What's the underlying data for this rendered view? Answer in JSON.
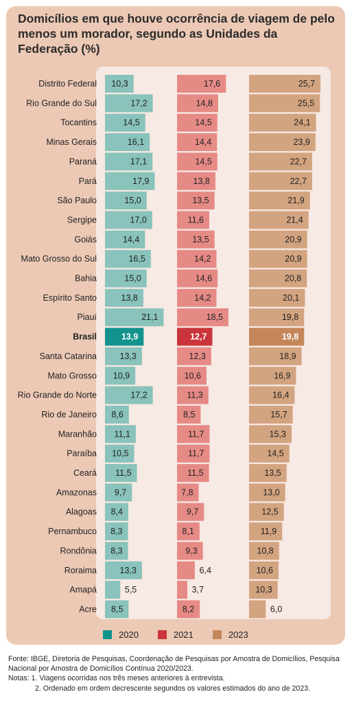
{
  "title": "Domicílios em que houve ocorrência de viagem de pelo menos um morador, segundo as Unidades da Federação (%)",
  "colors": {
    "panel": "#ecc9b5",
    "plot_bg": "#f7e9e3",
    "s2020": "#89c3bb",
    "s2020_highlight": "#12938d",
    "s2021": "#e68a86",
    "s2021_highlight": "#c9353a",
    "s2023": "#d3a480",
    "s2023_highlight": "#c5875a"
  },
  "legend": [
    {
      "label": "2020",
      "color": "#12938d"
    },
    {
      "label": "2021",
      "color": "#c9353a"
    },
    {
      "label": "2023",
      "color": "#c5875a"
    }
  ],
  "chart_data": {
    "type": "bar",
    "orientation": "horizontal",
    "highlight": "Brasil",
    "categories": [
      "Distrito Federal",
      "Rio Grande do Sul",
      "Tocantins",
      "Minas Gerais",
      "Paraná",
      "Pará",
      "São Paulo",
      "Sergipe",
      "Goiás",
      "Mato Grosso do Sul",
      "Bahia",
      "Espírito Santo",
      "Piauí",
      "Brasil",
      "Santa Catarina",
      "Mato Grosso",
      "Rio Grande do Norte",
      "Rio de Janeiro",
      "Maranhão",
      "Paraíba",
      "Ceará",
      "Amazonas",
      "Alagoas",
      "Pernambuco",
      "Rondônia",
      "Roraima",
      "Amapá",
      "Acre"
    ],
    "series": [
      {
        "name": "2020",
        "values": [
          10.3,
          17.2,
          14.5,
          16.1,
          17.1,
          17.9,
          15.0,
          17.0,
          14.4,
          16.5,
          15.0,
          13.8,
          21.1,
          13.9,
          13.3,
          10.9,
          17.2,
          8.6,
          11.1,
          10.5,
          11.5,
          9.7,
          8.4,
          8.3,
          8.3,
          13.3,
          5.5,
          8.5
        ],
        "labels": [
          "10,3",
          "17,2",
          "14,5",
          "16,1",
          "17,1",
          "17,9",
          "15,0",
          "17,0",
          "14,4",
          "16,5",
          "15,0",
          "13,8",
          "21,1",
          "13,9",
          "13,3",
          "10,9",
          "17,2",
          "8,6",
          "11,1",
          "10,5",
          "11,5",
          "9,7",
          "8,4",
          "8,3",
          "8,3",
          "13,3",
          "5,5",
          "8,5"
        ]
      },
      {
        "name": "2021",
        "values": [
          17.6,
          14.8,
          14.5,
          14.4,
          14.5,
          13.8,
          13.5,
          11.6,
          13.5,
          14.2,
          14.6,
          14.2,
          18.5,
          12.7,
          12.3,
          10.6,
          11.3,
          8.5,
          11.7,
          11.7,
          11.5,
          7.8,
          9.7,
          8.1,
          9.3,
          6.4,
          3.7,
          8.2
        ],
        "labels": [
          "17,6",
          "14,8",
          "14,5",
          "14,4",
          "14,5",
          "13,8",
          "13,5",
          "11,6",
          "13,5",
          "14,2",
          "14,6",
          "14,2",
          "18,5",
          "12,7",
          "12,3",
          "10,6",
          "11,3",
          "8,5",
          "11,7",
          "11,7",
          "11,5",
          "7,8",
          "9,7",
          "8,1",
          "9,3",
          "6,4",
          "3,7",
          "8,2"
        ]
      },
      {
        "name": "2023",
        "values": [
          25.7,
          25.5,
          24.1,
          23.9,
          22.7,
          22.7,
          21.9,
          21.4,
          20.9,
          20.9,
          20.8,
          20.1,
          19.8,
          19.8,
          18.9,
          16.9,
          16.4,
          15.7,
          15.3,
          14.5,
          13.5,
          13.0,
          12.5,
          11.9,
          10.8,
          10.6,
          10.3,
          6.0
        ],
        "labels": [
          "25,7",
          "25,5",
          "24,1",
          "23,9",
          "22,7",
          "22,7",
          "21,9",
          "21,4",
          "20,9",
          "20,9",
          "20,8",
          "20,1",
          "19,8",
          "19,8",
          "18,9",
          "16,9",
          "16,4",
          "15,7",
          "15,3",
          "14,5",
          "13,5",
          "13,0",
          "12,5",
          "11,9",
          "10,8",
          "10,6",
          "10,3",
          "6,0"
        ]
      }
    ]
  },
  "footer": {
    "source": "Fonte: IBGE, Diretoria de Pesquisas, Coordenação de Pesquisas por Amostra de Domicílios, Pesquisa Nacional por Amostra de Domicílios Contínua 2020/2023.",
    "note1": "Notas: 1. Viagens ocorridas nos três meses anteriores à entrevista.",
    "note2": "2. Ordenado em ordem decrescente segundos os valores estimados do ano de 2023."
  }
}
